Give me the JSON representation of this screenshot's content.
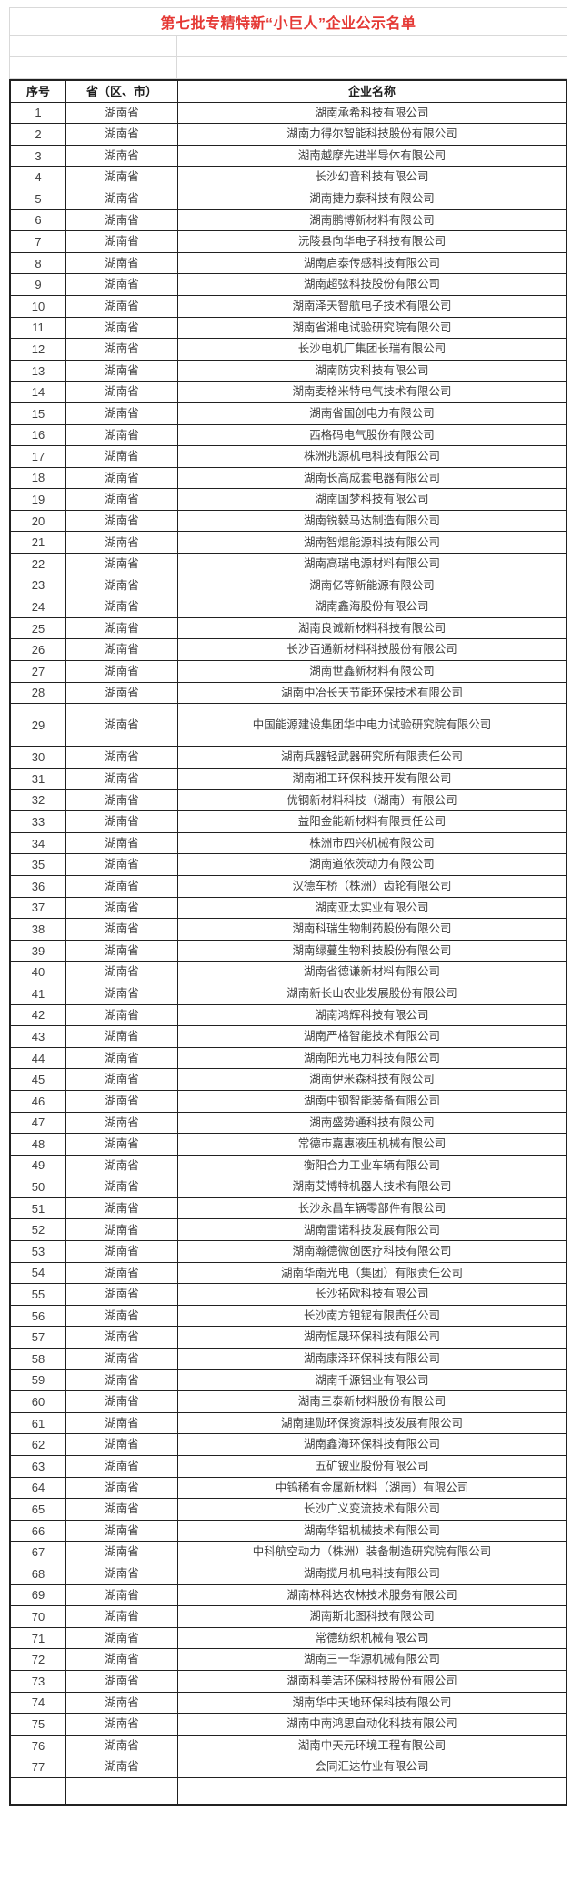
{
  "title": {
    "text": "第七批专精特新“小巨人”企业公示名单",
    "color": "#e53935"
  },
  "colors": {
    "border_dark": "#212121",
    "border_light": "#d9d9d9",
    "text": "#404040"
  },
  "table": {
    "headers": {
      "no": "序号",
      "province": "省（区、市）",
      "company": "企业名称"
    },
    "rows": [
      {
        "no": "1",
        "province": "湖南省",
        "company": "湖南承希科技有限公司"
      },
      {
        "no": "2",
        "province": "湖南省",
        "company": "湖南力得尔智能科技股份有限公司"
      },
      {
        "no": "3",
        "province": "湖南省",
        "company": "湖南越摩先进半导体有限公司"
      },
      {
        "no": "4",
        "province": "湖南省",
        "company": "长沙幻音科技有限公司"
      },
      {
        "no": "5",
        "province": "湖南省",
        "company": "湖南捷力泰科技有限公司"
      },
      {
        "no": "6",
        "province": "湖南省",
        "company": "湖南鹏博新材料有限公司"
      },
      {
        "no": "7",
        "province": "湖南省",
        "company": "沅陵县向华电子科技有限公司"
      },
      {
        "no": "8",
        "province": "湖南省",
        "company": "湖南启泰传感科技有限公司"
      },
      {
        "no": "9",
        "province": "湖南省",
        "company": "湖南超弦科技股份有限公司"
      },
      {
        "no": "10",
        "province": "湖南省",
        "company": "湖南泽天智航电子技术有限公司"
      },
      {
        "no": "11",
        "province": "湖南省",
        "company": "湖南省湘电试验研究院有限公司"
      },
      {
        "no": "12",
        "province": "湖南省",
        "company": "长沙电机厂集团长瑞有限公司"
      },
      {
        "no": "13",
        "province": "湖南省",
        "company": "湖南防灾科技有限公司"
      },
      {
        "no": "14",
        "province": "湖南省",
        "company": "湖南麦格米特电气技术有限公司"
      },
      {
        "no": "15",
        "province": "湖南省",
        "company": "湖南省国创电力有限公司"
      },
      {
        "no": "16",
        "province": "湖南省",
        "company": "西格码电气股份有限公司"
      },
      {
        "no": "17",
        "province": "湖南省",
        "company": "株洲兆源机电科技有限公司"
      },
      {
        "no": "18",
        "province": "湖南省",
        "company": "湖南长高成套电器有限公司"
      },
      {
        "no": "19",
        "province": "湖南省",
        "company": "湖南国梦科技有限公司"
      },
      {
        "no": "20",
        "province": "湖南省",
        "company": "湖南锐毅马达制造有限公司"
      },
      {
        "no": "21",
        "province": "湖南省",
        "company": "湖南智焜能源科技有限公司"
      },
      {
        "no": "22",
        "province": "湖南省",
        "company": "湖南高瑞电源材料有限公司"
      },
      {
        "no": "23",
        "province": "湖南省",
        "company": "湖南亿等新能源有限公司"
      },
      {
        "no": "24",
        "province": "湖南省",
        "company": "湖南鑫海股份有限公司"
      },
      {
        "no": "25",
        "province": "湖南省",
        "company": "湖南良诚新材料科技有限公司"
      },
      {
        "no": "26",
        "province": "湖南省",
        "company": "长沙百通新材料科技股份有限公司"
      },
      {
        "no": "27",
        "province": "湖南省",
        "company": "湖南世鑫新材料有限公司"
      },
      {
        "no": "28",
        "province": "湖南省",
        "company": "湖南中冶长天节能环保技术有限公司"
      },
      {
        "no": "29",
        "province": "湖南省",
        "company": "中国能源建设集团华中电力试验研究院有限公司",
        "tall": true
      },
      {
        "no": "30",
        "province": "湖南省",
        "company": "湖南兵器轻武器研究所有限责任公司"
      },
      {
        "no": "31",
        "province": "湖南省",
        "company": "湖南湘工环保科技开发有限公司"
      },
      {
        "no": "32",
        "province": "湖南省",
        "company": "优钢新材料科技（湖南）有限公司"
      },
      {
        "no": "33",
        "province": "湖南省",
        "company": "益阳金能新材料有限责任公司"
      },
      {
        "no": "34",
        "province": "湖南省",
        "company": "株洲市四兴机械有限公司"
      },
      {
        "no": "35",
        "province": "湖南省",
        "company": "湖南道依茨动力有限公司"
      },
      {
        "no": "36",
        "province": "湖南省",
        "company": "汉德车桥（株洲）齿轮有限公司"
      },
      {
        "no": "37",
        "province": "湖南省",
        "company": "湖南亚太实业有限公司"
      },
      {
        "no": "38",
        "province": "湖南省",
        "company": "湖南科瑞生物制药股份有限公司"
      },
      {
        "no": "39",
        "province": "湖南省",
        "company": "湖南绿蔓生物科技股份有限公司"
      },
      {
        "no": "40",
        "province": "湖南省",
        "company": "湖南省德谦新材料有限公司"
      },
      {
        "no": "41",
        "province": "湖南省",
        "company": "湖南新长山农业发展股份有限公司"
      },
      {
        "no": "42",
        "province": "湖南省",
        "company": "湖南鸿辉科技有限公司"
      },
      {
        "no": "43",
        "province": "湖南省",
        "company": "湖南严格智能技术有限公司"
      },
      {
        "no": "44",
        "province": "湖南省",
        "company": "湖南阳光电力科技有限公司"
      },
      {
        "no": "45",
        "province": "湖南省",
        "company": "湖南伊米森科技有限公司"
      },
      {
        "no": "46",
        "province": "湖南省",
        "company": "湖南中钢智能装备有限公司"
      },
      {
        "no": "47",
        "province": "湖南省",
        "company": "湖南盛势通科技有限公司"
      },
      {
        "no": "48",
        "province": "湖南省",
        "company": "常德市嘉惠液压机械有限公司"
      },
      {
        "no": "49",
        "province": "湖南省",
        "company": "衡阳合力工业车辆有限公司"
      },
      {
        "no": "50",
        "province": "湖南省",
        "company": "湖南艾博特机器人技术有限公司"
      },
      {
        "no": "51",
        "province": "湖南省",
        "company": "长沙永昌车辆零部件有限公司"
      },
      {
        "no": "52",
        "province": "湖南省",
        "company": "湖南雷诺科技发展有限公司"
      },
      {
        "no": "53",
        "province": "湖南省",
        "company": "湖南瀚德微创医疗科技有限公司"
      },
      {
        "no": "54",
        "province": "湖南省",
        "company": "湖南华南光电（集团）有限责任公司"
      },
      {
        "no": "55",
        "province": "湖南省",
        "company": "长沙拓欧科技有限公司"
      },
      {
        "no": "56",
        "province": "湖南省",
        "company": "长沙南方钽铌有限责任公司"
      },
      {
        "no": "57",
        "province": "湖南省",
        "company": "湖南恒晟环保科技有限公司"
      },
      {
        "no": "58",
        "province": "湖南省",
        "company": "湖南康泽环保科技有限公司"
      },
      {
        "no": "59",
        "province": "湖南省",
        "company": "湖南千源铝业有限公司"
      },
      {
        "no": "60",
        "province": "湖南省",
        "company": "湖南三泰新材料股份有限公司"
      },
      {
        "no": "61",
        "province": "湖南省",
        "company": "湖南建勋环保资源科技发展有限公司"
      },
      {
        "no": "62",
        "province": "湖南省",
        "company": "湖南鑫海环保科技有限公司"
      },
      {
        "no": "63",
        "province": "湖南省",
        "company": "五矿铍业股份有限公司"
      },
      {
        "no": "64",
        "province": "湖南省",
        "company": "中钨稀有金属新材料（湖南）有限公司"
      },
      {
        "no": "65",
        "province": "湖南省",
        "company": "长沙广义变流技术有限公司"
      },
      {
        "no": "66",
        "province": "湖南省",
        "company": "湖南华铝机械技术有限公司"
      },
      {
        "no": "67",
        "province": "湖南省",
        "company": "中科航空动力（株洲）装备制造研究院有限公司"
      },
      {
        "no": "68",
        "province": "湖南省",
        "company": "湖南揽月机电科技有限公司"
      },
      {
        "no": "69",
        "province": "湖南省",
        "company": "湖南林科达农林技术服务有限公司"
      },
      {
        "no": "70",
        "province": "湖南省",
        "company": "湖南斯北图科技有限公司"
      },
      {
        "no": "71",
        "province": "湖南省",
        "company": "常德纺织机械有限公司"
      },
      {
        "no": "72",
        "province": "湖南省",
        "company": "湖南三一华源机械有限公司"
      },
      {
        "no": "73",
        "province": "湖南省",
        "company": "湖南科美洁环保科技股份有限公司"
      },
      {
        "no": "74",
        "province": "湖南省",
        "company": "湖南华中天地环保科技有限公司"
      },
      {
        "no": "75",
        "province": "湖南省",
        "company": "湖南中南鸿思自动化科技有限公司"
      },
      {
        "no": "76",
        "province": "湖南省",
        "company": "湖南中天元环境工程有限公司"
      },
      {
        "no": "77",
        "province": "湖南省",
        "company": "会同汇达竹业有限公司"
      }
    ]
  }
}
